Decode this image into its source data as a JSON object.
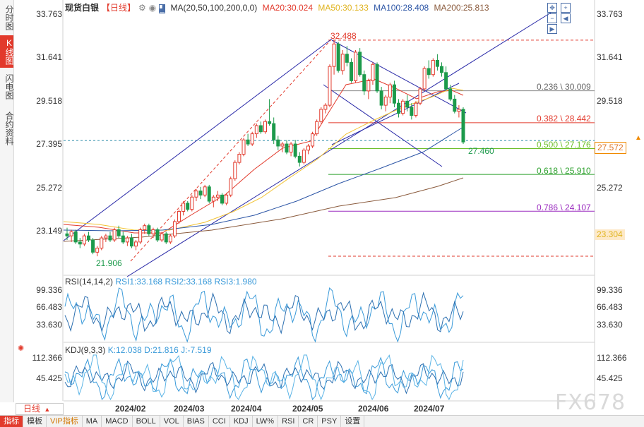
{
  "left_tabs": [
    {
      "label": "分时图",
      "active": false
    },
    {
      "label": "K线图",
      "active": true
    },
    {
      "label": "闪电图",
      "active": false
    },
    {
      "label": "合约资料",
      "active": false
    }
  ],
  "legend": {
    "instrument": "现货白银",
    "period_tag": "【日线】",
    "ma_params": "MA(20,50,100,200,0,0)",
    "ma20": "MA20:30.024",
    "ma50": "MA50:30.133",
    "ma100": "MA100:28.408",
    "ma200": "MA200:25.813"
  },
  "colors": {
    "up": "#e23a2c",
    "down": "#1c9a4b",
    "ma20": "#e23a2c",
    "ma50": "#f2c232",
    "ma100": "#2d56a6",
    "ma200": "#8a5a3c",
    "trend": "#2a2aa8",
    "fib_red": "#e23a2c",
    "fib_green": "#6cbf2a",
    "fib_purple": "#9b2dbf",
    "fib_gray": "#888888"
  },
  "price_axis": {
    "ticks": [
      "33.763",
      "31.641",
      "29.518",
      "27.395",
      "25.272",
      "23.149"
    ],
    "current_price": "27.572",
    "ma_marker": "23.304"
  },
  "annotations": {
    "high": "32.488",
    "low": "21.906",
    "last_low": "27.460"
  },
  "fib_levels": [
    {
      "label": "0.236 \\ 30.009",
      "color": "fib_gray"
    },
    {
      "label": "0.382 \\ 28.442",
      "color": "fib_red"
    },
    {
      "label": "0.500 \\ 27.176",
      "color": "fib_green"
    },
    {
      "label": "0.618 \\ 25.910",
      "color": "fib_green"
    },
    {
      "label": "0.786 \\ 24.107",
      "color": "fib_purple"
    }
  ],
  "rsi": {
    "params": "RSI(14,14,2)",
    "rsi1": "RSI1:33.168",
    "rsi2": "RSI2:33.168",
    "rsi3": "RSI3:1.980",
    "ticks": [
      "99.336",
      "66.483",
      "33.630"
    ]
  },
  "kdj": {
    "params": "KDJ(9,3,3)",
    "k": "K:12.038",
    "d": "D:21.816",
    "j": "J:-7.519",
    "ticks": [
      "112.366",
      "45.425"
    ]
  },
  "time_axis": {
    "months": [
      "2024/02",
      "2024/03",
      "2024/04",
      "2024/05",
      "2024/06",
      "2024/07"
    ]
  },
  "period_selector": {
    "label": "日线",
    "arrow": "▲"
  },
  "bottom_tabs": [
    {
      "label": "指标",
      "active": true,
      "vip": false
    },
    {
      "label": "模板",
      "active": false,
      "vip": false
    },
    {
      "label": "VIP指标",
      "active": false,
      "vip": true
    },
    {
      "label": "MA",
      "active": false,
      "vip": false
    },
    {
      "label": "MACD",
      "active": false,
      "vip": false
    },
    {
      "label": "BOLL",
      "active": false,
      "vip": false
    },
    {
      "label": "VOL",
      "active": false,
      "vip": false
    },
    {
      "label": "BIAS",
      "active": false,
      "vip": false
    },
    {
      "label": "CCI",
      "active": false,
      "vip": false
    },
    {
      "label": "KDJ",
      "active": false,
      "vip": false
    },
    {
      "label": "LW%",
      "active": false,
      "vip": false
    },
    {
      "label": "RSI",
      "active": false,
      "vip": false
    },
    {
      "label": "CR",
      "active": false,
      "vip": false
    },
    {
      "label": "PSY",
      "active": false,
      "vip": false
    },
    {
      "label": "设置",
      "active": false,
      "vip": false
    }
  ],
  "watermark": "FX678",
  "chart_data": {
    "type": "candlestick",
    "title": "",
    "ylim": [
      21.0,
      34.5
    ],
    "candles": [
      [
        23.0,
        23.3,
        22.7,
        22.9
      ],
      [
        22.9,
        23.2,
        22.6,
        23.1
      ],
      [
        23.1,
        23.2,
        22.5,
        22.6
      ],
      [
        22.6,
        22.8,
        22.3,
        22.5
      ],
      [
        22.5,
        23.0,
        22.4,
        22.9
      ],
      [
        22.9,
        23.1,
        22.6,
        22.7
      ],
      [
        22.7,
        22.8,
        22.0,
        22.1
      ],
      [
        22.1,
        22.4,
        21.9,
        22.3
      ],
      [
        22.3,
        22.9,
        22.2,
        22.8
      ],
      [
        22.8,
        23.0,
        22.6,
        22.9
      ],
      [
        22.9,
        23.1,
        22.6,
        22.7
      ],
      [
        22.7,
        23.3,
        22.6,
        23.2
      ],
      [
        23.2,
        23.4,
        22.8,
        22.9
      ],
      [
        22.9,
        23.1,
        22.5,
        22.6
      ],
      [
        22.6,
        22.9,
        22.4,
        22.8
      ],
      [
        22.8,
        23.0,
        22.3,
        22.4
      ],
      [
        22.4,
        22.7,
        22.2,
        22.6
      ],
      [
        22.6,
        23.3,
        22.5,
        23.2
      ],
      [
        23.2,
        23.5,
        23.0,
        23.4
      ],
      [
        23.4,
        23.5,
        22.9,
        23.0
      ],
      [
        23.0,
        23.3,
        22.8,
        23.2
      ],
      [
        23.2,
        23.3,
        22.6,
        22.7
      ],
      [
        22.7,
        23.1,
        22.6,
        23.0
      ],
      [
        23.0,
        23.1,
        22.5,
        22.6
      ],
      [
        22.6,
        23.0,
        22.5,
        22.9
      ],
      [
        22.9,
        23.7,
        22.8,
        23.6
      ],
      [
        23.6,
        24.2,
        23.5,
        24.1
      ],
      [
        24.1,
        24.6,
        23.9,
        24.5
      ],
      [
        24.5,
        24.6,
        24.1,
        24.2
      ],
      [
        24.2,
        24.9,
        24.1,
        24.8
      ],
      [
        24.8,
        25.2,
        24.6,
        25.1
      ],
      [
        25.1,
        25.3,
        24.7,
        24.9
      ],
      [
        24.9,
        25.4,
        24.8,
        25.3
      ],
      [
        25.3,
        25.4,
        24.5,
        24.6
      ],
      [
        24.6,
        24.9,
        24.3,
        24.8
      ],
      [
        24.8,
        25.1,
        24.6,
        24.9
      ],
      [
        24.9,
        25.0,
        24.4,
        24.5
      ],
      [
        24.5,
        25.0,
        24.4,
        24.9
      ],
      [
        24.9,
        25.8,
        24.8,
        25.7
      ],
      [
        25.7,
        26.6,
        25.6,
        26.5
      ],
      [
        26.5,
        27.0,
        26.4,
        26.9
      ],
      [
        26.9,
        27.7,
        26.8,
        27.6
      ],
      [
        27.6,
        27.9,
        27.3,
        27.4
      ],
      [
        27.4,
        28.0,
        27.3,
        27.9
      ],
      [
        27.9,
        28.4,
        27.7,
        28.3
      ],
      [
        28.3,
        28.5,
        27.9,
        28.0
      ],
      [
        28.0,
        28.6,
        27.9,
        28.5
      ],
      [
        28.5,
        29.6,
        28.3,
        28.4
      ],
      [
        28.4,
        28.7,
        27.4,
        27.6
      ],
      [
        27.6,
        27.8,
        27.1,
        27.3
      ],
      [
        27.3,
        27.5,
        27.0,
        27.4
      ],
      [
        27.4,
        27.6,
        26.9,
        27.0
      ],
      [
        27.0,
        27.5,
        26.8,
        27.4
      ],
      [
        27.4,
        27.6,
        26.7,
        26.8
      ],
      [
        26.8,
        27.0,
        26.3,
        26.5
      ],
      [
        26.5,
        27.2,
        26.4,
        27.1
      ],
      [
        27.1,
        27.4,
        26.9,
        27.3
      ],
      [
        27.3,
        28.0,
        27.2,
        27.9
      ],
      [
        27.9,
        28.6,
        27.8,
        28.5
      ],
      [
        28.5,
        29.2,
        28.4,
        29.1
      ],
      [
        29.1,
        29.4,
        28.9,
        29.3
      ],
      [
        29.3,
        31.3,
        29.2,
        31.2
      ],
      [
        31.2,
        32.5,
        30.8,
        32.3
      ],
      [
        32.3,
        32.4,
        30.9,
        31.0
      ],
      [
        31.0,
        32.0,
        30.8,
        31.8
      ],
      [
        31.8,
        32.2,
        31.2,
        31.4
      ],
      [
        31.4,
        31.6,
        30.4,
        30.5
      ],
      [
        30.5,
        32.0,
        30.4,
        31.9
      ],
      [
        31.9,
        32.1,
        30.7,
        30.8
      ],
      [
        30.8,
        31.0,
        29.8,
        30.0
      ],
      [
        30.0,
        30.6,
        29.6,
        30.5
      ],
      [
        30.5,
        31.4,
        30.3,
        31.3
      ],
      [
        31.3,
        31.4,
        29.9,
        30.0
      ],
      [
        30.0,
        30.2,
        29.1,
        29.3
      ],
      [
        29.3,
        29.8,
        29.0,
        29.7
      ],
      [
        29.7,
        30.4,
        29.4,
        30.3
      ],
      [
        30.3,
        30.5,
        29.2,
        29.4
      ],
      [
        29.4,
        29.6,
        28.7,
        28.9
      ],
      [
        28.9,
        29.6,
        28.8,
        29.5
      ],
      [
        29.5,
        29.8,
        29.0,
        29.2
      ],
      [
        29.2,
        29.4,
        28.6,
        28.8
      ],
      [
        28.8,
        29.5,
        28.7,
        29.4
      ],
      [
        29.4,
        30.2,
        29.3,
        30.1
      ],
      [
        30.1,
        31.2,
        30.0,
        31.1
      ],
      [
        31.1,
        31.5,
        30.6,
        30.8
      ],
      [
        30.8,
        31.6,
        30.7,
        31.5
      ],
      [
        31.5,
        31.8,
        31.0,
        31.2
      ],
      [
        31.2,
        31.4,
        30.7,
        30.9
      ],
      [
        30.9,
        31.2,
        30.0,
        30.1
      ],
      [
        30.1,
        30.3,
        29.5,
        29.6
      ],
      [
        29.6,
        29.8,
        28.9,
        29.0
      ],
      [
        29.0,
        29.3,
        28.7,
        29.1
      ],
      [
        29.1,
        29.2,
        27.4,
        27.5
      ]
    ]
  }
}
